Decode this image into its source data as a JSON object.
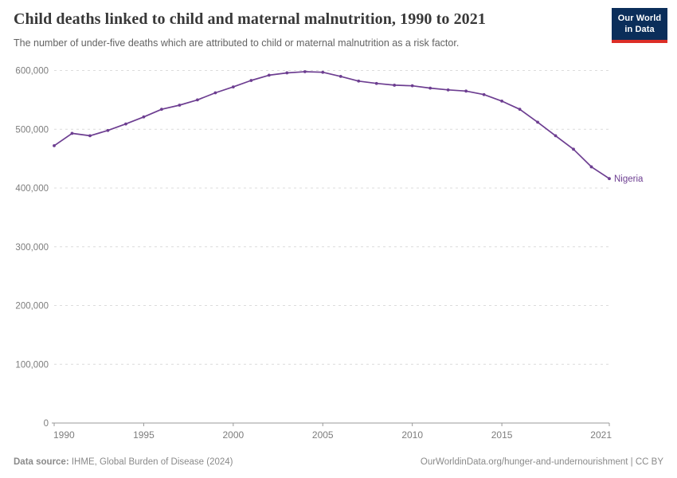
{
  "header": {
    "title": "Child deaths linked to child and maternal malnutrition, 1990 to 2021",
    "subtitle": "The number of under-five deaths which are attributed to child or maternal malnutrition as a risk factor."
  },
  "logo": {
    "line1": "Our World",
    "line2": "in Data"
  },
  "chart_data": {
    "type": "line",
    "title": "Child deaths linked to child and maternal malnutrition, 1990 to 2021",
    "xlabel": "",
    "ylabel": "",
    "x": [
      1990,
      1991,
      1992,
      1993,
      1994,
      1995,
      1996,
      1997,
      1998,
      1999,
      2000,
      2001,
      2002,
      2003,
      2004,
      2005,
      2006,
      2007,
      2008,
      2009,
      2010,
      2011,
      2012,
      2013,
      2014,
      2015,
      2016,
      2017,
      2018,
      2019,
      2020,
      2021
    ],
    "series": [
      {
        "name": "Nigeria",
        "color": "#6d3e91",
        "values": [
          472000,
          493000,
          489000,
          498000,
          509000,
          521000,
          534000,
          541000,
          550000,
          562000,
          572000,
          583000,
          592000,
          596000,
          598000,
          597000,
          590000,
          582000,
          578000,
          575000,
          574000,
          570000,
          567000,
          565000,
          559000,
          548000,
          534000,
          512000,
          489000,
          466000,
          436000,
          416000
        ]
      }
    ],
    "xticks": [
      1990,
      1995,
      2000,
      2005,
      2010,
      2015,
      2021
    ],
    "yticks": [
      0,
      100000,
      200000,
      300000,
      400000,
      500000,
      600000
    ],
    "xlim": [
      1990,
      2021
    ],
    "ylim": [
      0,
      600000
    ],
    "grid": "horizontal-dashed",
    "legend_position": "end-of-line-label",
    "end_label": "Nigeria"
  },
  "footer": {
    "source_label": "Data source:",
    "source_value": " IHME, Global Burden of Disease (2024)",
    "link": "OurWorldinData.org/hunger-and-undernourishment | CC BY"
  },
  "colors": {
    "accent_line": "#6d3e91",
    "logo_background": "#0b2e5a",
    "logo_underline": "#dc2e27",
    "gridline": "#dcdcdc",
    "axis": "#999999",
    "tick_label": "#7d7d7d",
    "title_text": "#383838",
    "subtitle_text": "#636363",
    "footer_text": "#8a8a8a"
  }
}
